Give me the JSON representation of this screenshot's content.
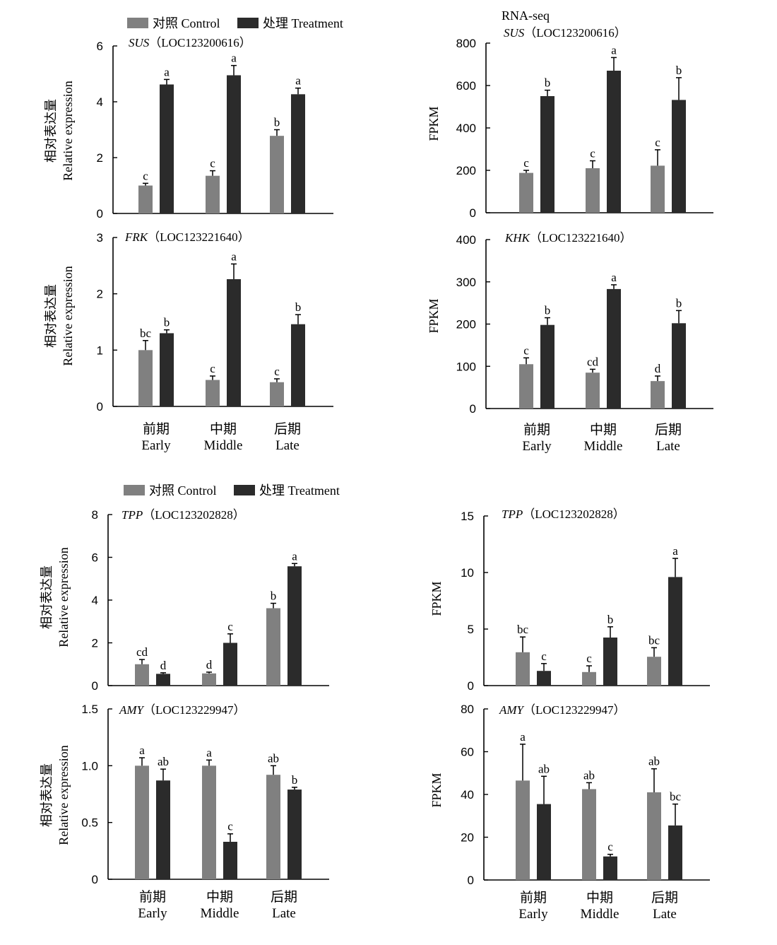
{
  "colors": {
    "control": "#808080",
    "treatment": "#2b2b2b"
  },
  "legend": [
    {
      "label": "对照 Control",
      "color": "#808080"
    },
    {
      "label": "处理 Treatment",
      "color": "#2b2b2b"
    }
  ],
  "rna_seq_label": "RNA-seq",
  "categories": [
    {
      "zh": "前期",
      "en": "Early"
    },
    {
      "zh": "中期",
      "en": "Middle"
    },
    {
      "zh": "后期",
      "en": "Late"
    }
  ],
  "ylabels": {
    "qpcr_zh": "相对表达量",
    "qpcr_en": "Relative expression",
    "fpkm": "FPKM"
  },
  "chart_data": [
    {
      "type": "bar",
      "panel": "sus-qpcr",
      "gene": "SUS",
      "locus": "（LOC123200616）",
      "ylabel": "相对表达量 Relative expression",
      "categories": [
        "Early",
        "Middle",
        "Late"
      ],
      "ylim": [
        0,
        6
      ],
      "yticks": [
        "0",
        "2",
        "4",
        "6"
      ],
      "series": [
        {
          "name": "对照 Control",
          "values": [
            1.0,
            1.35,
            2.78
          ],
          "errors": [
            0.08,
            0.18,
            0.22
          ],
          "letters": [
            "c",
            "c",
            "b"
          ]
        },
        {
          "name": "处理 Treatment",
          "values": [
            4.62,
            4.95,
            4.27
          ],
          "errors": [
            0.18,
            0.35,
            0.22
          ],
          "letters": [
            "a",
            "a",
            "a"
          ]
        }
      ]
    },
    {
      "type": "bar",
      "panel": "frk-qpcr",
      "gene": "FRK",
      "locus": "（LOC123221640）",
      "ylabel": "相对表达量 Relative expression",
      "categories": [
        "Early",
        "Middle",
        "Late"
      ],
      "ylim": [
        0,
        3
      ],
      "yticks": [
        "0",
        "1",
        "2",
        "3"
      ],
      "series": [
        {
          "name": "对照 Control",
          "values": [
            1.0,
            0.47,
            0.43
          ],
          "errors": [
            0.17,
            0.07,
            0.06
          ],
          "letters": [
            "bc",
            "c",
            "c"
          ]
        },
        {
          "name": "处理 Treatment",
          "values": [
            1.3,
            2.26,
            1.46
          ],
          "errors": [
            0.06,
            0.27,
            0.17
          ],
          "letters": [
            "b",
            "a",
            "b"
          ]
        }
      ]
    },
    {
      "type": "bar",
      "panel": "sus-fpkm",
      "gene": "SUS",
      "locus": "（LOC123200616）",
      "ylabel": "FPKM",
      "categories": [
        "Early",
        "Middle",
        "Late"
      ],
      "ylim": [
        0,
        800
      ],
      "yticks": [
        "0",
        "200",
        "400",
        "600",
        "800"
      ],
      "series": [
        {
          "name": "对照 Control",
          "values": [
            188,
            210,
            222
          ],
          "errors": [
            12,
            35,
            75
          ],
          "letters": [
            "c",
            "c",
            "c"
          ]
        },
        {
          "name": "处理 Treatment",
          "values": [
            550,
            670,
            532
          ],
          "errors": [
            28,
            62,
            105
          ],
          "letters": [
            "b",
            "a",
            "b"
          ]
        }
      ]
    },
    {
      "type": "bar",
      "panel": "khk-fpkm",
      "gene": "KHK",
      "locus": "（LOC123221640）",
      "ylabel": "FPKM",
      "categories": [
        "Early",
        "Middle",
        "Late"
      ],
      "ylim": [
        0,
        400
      ],
      "yticks": [
        "0",
        "100",
        "200",
        "300",
        "400"
      ],
      "series": [
        {
          "name": "对照 Control",
          "values": [
            105,
            85,
            65
          ],
          "errors": [
            15,
            8,
            12
          ],
          "letters": [
            "c",
            "cd",
            "d"
          ]
        },
        {
          "name": "处理 Treatment",
          "values": [
            198,
            283,
            202
          ],
          "errors": [
            17,
            10,
            30
          ],
          "letters": [
            "b",
            "a",
            "b"
          ]
        }
      ]
    },
    {
      "type": "bar",
      "panel": "tpp-qpcr",
      "gene": "TPP",
      "locus": "（LOC123202828）",
      "ylabel": "相对表达量 Relative expression",
      "categories": [
        "Early",
        "Middle",
        "Late"
      ],
      "ylim": [
        0,
        8
      ],
      "yticks": [
        "0",
        "2",
        "4",
        "6",
        "8"
      ],
      "series": [
        {
          "name": "对照 Control",
          "values": [
            1.0,
            0.57,
            3.62
          ],
          "errors": [
            0.22,
            0.06,
            0.23
          ],
          "letters": [
            "cd",
            "d",
            "b"
          ]
        },
        {
          "name": "处理 Treatment",
          "values": [
            0.55,
            2.0,
            5.58
          ],
          "errors": [
            0.05,
            0.42,
            0.13
          ],
          "letters": [
            "d",
            "c",
            "a"
          ]
        }
      ]
    },
    {
      "type": "bar",
      "panel": "amy-qpcr",
      "gene": "AMY",
      "locus": "（LOC123229947）",
      "ylabel": "相对表达量 Relative expression",
      "categories": [
        "Early",
        "Middle",
        "Late"
      ],
      "ylim": [
        0,
        1.5
      ],
      "yticks": [
        "0",
        "0.5",
        "1.0",
        "1.5"
      ],
      "series": [
        {
          "name": "对照 Control",
          "values": [
            1.0,
            1.0,
            0.92
          ],
          "errors": [
            0.07,
            0.05,
            0.08
          ],
          "letters": [
            "a",
            "a",
            "ab"
          ]
        },
        {
          "name": "处理 Treatment",
          "values": [
            0.87,
            0.33,
            0.79
          ],
          "errors": [
            0.1,
            0.07,
            0.02
          ],
          "letters": [
            "ab",
            "c",
            "b"
          ]
        }
      ]
    },
    {
      "type": "bar",
      "panel": "tpp-fpkm",
      "gene": "TPP",
      "locus": "（LOC123202828）",
      "ylabel": "FPKM",
      "categories": [
        "Early",
        "Middle",
        "Late"
      ],
      "ylim": [
        0,
        15
      ],
      "yticks": [
        "0",
        "5",
        "10",
        "15"
      ],
      "series": [
        {
          "name": "对照 Control",
          "values": [
            2.95,
            1.2,
            2.55
          ],
          "errors": [
            1.35,
            0.55,
            0.8
          ],
          "letters": [
            "bc",
            "c",
            "bc"
          ]
        },
        {
          "name": "处理 Treatment",
          "values": [
            1.3,
            4.25,
            9.6
          ],
          "errors": [
            0.65,
            0.95,
            1.65
          ],
          "letters": [
            "c",
            "b",
            "a"
          ]
        }
      ]
    },
    {
      "type": "bar",
      "panel": "amy-fpkm",
      "gene": "AMY",
      "locus": "（LOC123229947）",
      "ylabel": "FPKM",
      "categories": [
        "Early",
        "Middle",
        "Late"
      ],
      "ylim": [
        0,
        80
      ],
      "yticks": [
        "0",
        "20",
        "40",
        "60",
        "80"
      ],
      "series": [
        {
          "name": "对照 Control",
          "values": [
            46.5,
            42.5,
            41.0
          ],
          "errors": [
            17,
            3,
            11
          ],
          "letters": [
            "a",
            "ab",
            "ab"
          ]
        },
        {
          "name": "处理 Treatment",
          "values": [
            35.5,
            11.0,
            25.5
          ],
          "errors": [
            13,
            1,
            10
          ],
          "letters": [
            "ab",
            "c",
            "bc"
          ]
        }
      ]
    }
  ]
}
